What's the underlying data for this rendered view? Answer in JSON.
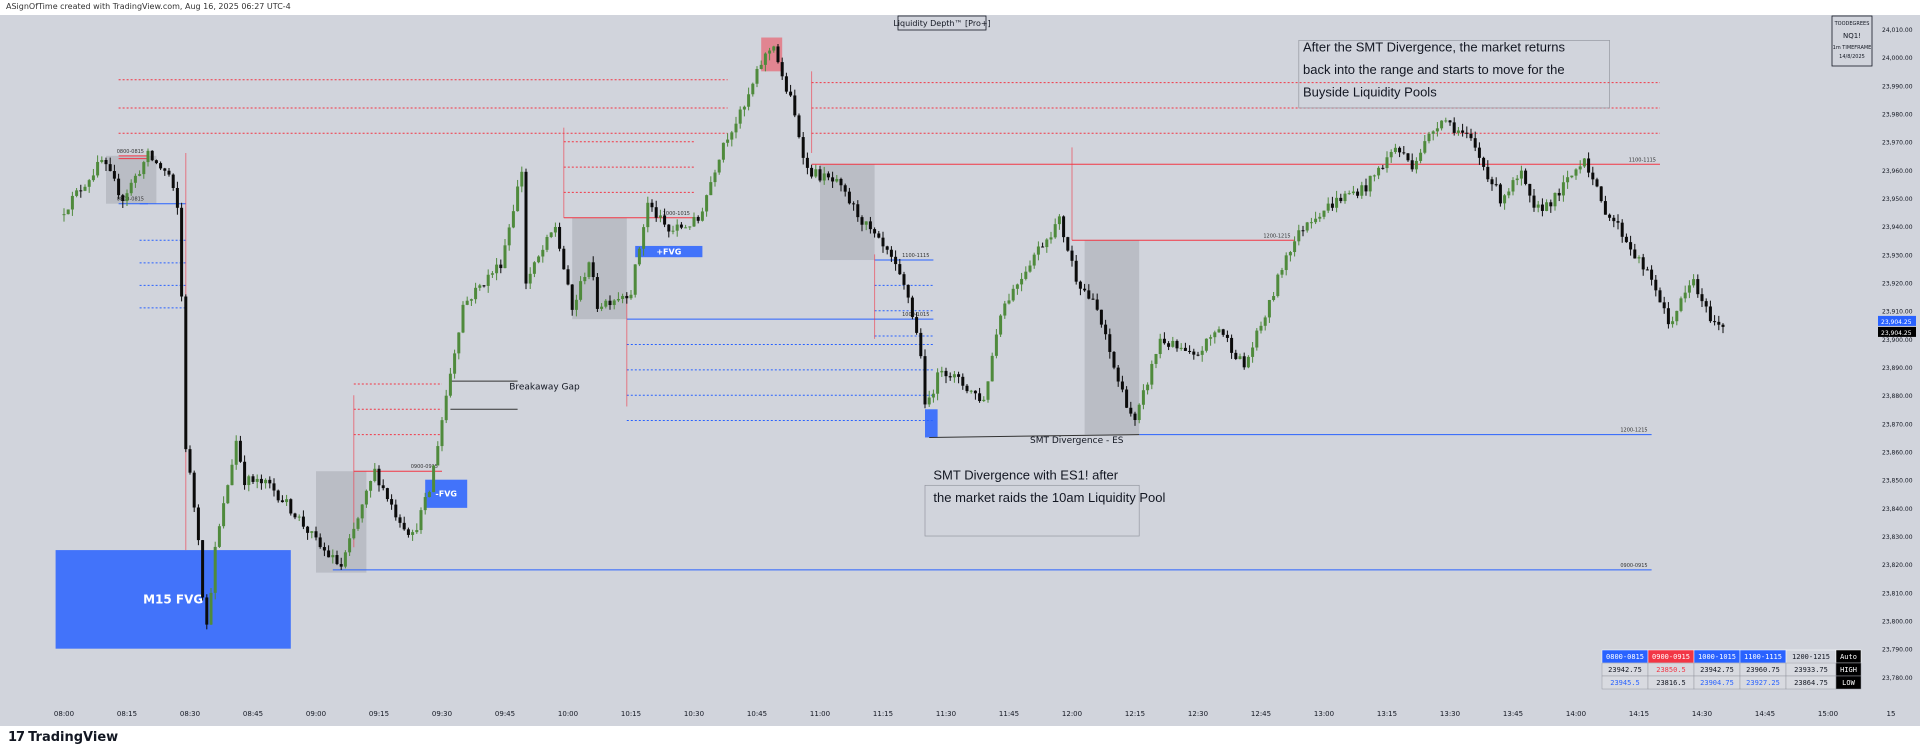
{
  "header": {
    "attribution": "ASignOfTime created with TradingView.com, Aug 16, 2025 06:27 UTC-4"
  },
  "footer": {
    "brand": "TradingView",
    "brand_icon": "tradingview-logo-icon"
  },
  "indicator": {
    "title": "Liquidity Depth™ [Pro+]"
  },
  "watermark": {
    "lines": [
      "TOODEGREES",
      "NQ1!",
      "1m TIMEFRAME",
      "14/8/2025"
    ]
  },
  "colors": {
    "background": "#d1d4dc",
    "bull": "#4f8a3c",
    "bear": "#0b0b0b",
    "blue": "#2962ff",
    "red": "#f23645",
    "zone": "#b2b5be"
  },
  "chart_data": {
    "type": "candlestick",
    "symbol": "NQ1!",
    "timeframe": "1m",
    "ylim": [
      23770,
      24015
    ],
    "y_ticks": [
      23780,
      23790,
      23800,
      23810,
      23820,
      23830,
      23840,
      23850,
      23860,
      23870,
      23880,
      23890,
      23900,
      23910,
      23920,
      23930,
      23940,
      23950,
      23960,
      23970,
      23980,
      23990,
      24000,
      24010
    ],
    "y_tick_labels": [
      "23,780.00",
      "23,790.00",
      "23,800.00",
      "23,810.00",
      "23,820.00",
      "23,830.00",
      "23,840.00",
      "23,850.00",
      "23,860.00",
      "23,870.00",
      "23,880.00",
      "23,890.00",
      "23,900.00",
      "23,910.00",
      "23,920.00",
      "23,930.00",
      "23,940.00",
      "23,950.00",
      "23,960.00",
      "23,970.00",
      "23,980.00",
      "23,990.00",
      "24,000.00",
      "24,010.00"
    ],
    "x_labels": [
      {
        "t": 0,
        "label": "08:00"
      },
      {
        "t": 15,
        "label": "08:15"
      },
      {
        "t": 30,
        "label": "08:30"
      },
      {
        "t": 45,
        "label": "08:45"
      },
      {
        "t": 60,
        "label": "09:00"
      },
      {
        "t": 75,
        "label": "09:15"
      },
      {
        "t": 90,
        "label": "09:30"
      },
      {
        "t": 105,
        "label": "09:45"
      },
      {
        "t": 120,
        "label": "10:00"
      },
      {
        "t": 135,
        "label": "10:15"
      },
      {
        "t": 150,
        "label": "10:30"
      },
      {
        "t": 165,
        "label": "10:45"
      },
      {
        "t": 180,
        "label": "11:00"
      },
      {
        "t": 195,
        "label": "11:15"
      },
      {
        "t": 210,
        "label": "11:30"
      },
      {
        "t": 225,
        "label": "11:45"
      },
      {
        "t": 240,
        "label": "12:00"
      },
      {
        "t": 255,
        "label": "12:15"
      },
      {
        "t": 270,
        "label": "12:30"
      },
      {
        "t": 285,
        "label": "12:45"
      },
      {
        "t": 300,
        "label": "13:00"
      },
      {
        "t": 315,
        "label": "13:15"
      },
      {
        "t": 330,
        "label": "13:30"
      },
      {
        "t": 345,
        "label": "13:45"
      },
      {
        "t": 360,
        "label": "14:00"
      },
      {
        "t": 375,
        "label": "14:15"
      },
      {
        "t": 390,
        "label": "14:30"
      },
      {
        "t": 405,
        "label": "14:45"
      },
      {
        "t": 420,
        "label": "15:00"
      },
      {
        "t": 435,
        "label": "15"
      }
    ],
    "waypoints": [
      [
        0,
        23944
      ],
      [
        10,
        23963
      ],
      [
        15,
        23950
      ],
      [
        21,
        23965
      ],
      [
        26,
        23958
      ],
      [
        28,
        23946
      ],
      [
        29,
        23915
      ],
      [
        30,
        23862
      ],
      [
        33,
        23830
      ],
      [
        34,
        23810
      ],
      [
        35,
        23798
      ],
      [
        37,
        23825
      ],
      [
        42,
        23864
      ],
      [
        44,
        23850
      ],
      [
        50,
        23848
      ],
      [
        56,
        23838
      ],
      [
        62,
        23826
      ],
      [
        67,
        23819
      ],
      [
        75,
        23853
      ],
      [
        80,
        23838
      ],
      [
        84,
        23830
      ],
      [
        88,
        23846
      ],
      [
        92,
        23880
      ],
      [
        96,
        23912
      ],
      [
        105,
        23927
      ],
      [
        110,
        23960
      ],
      [
        111,
        23920
      ],
      [
        118,
        23940
      ],
      [
        122,
        23910
      ],
      [
        126,
        23928
      ],
      [
        128,
        23912
      ],
      [
        136,
        23917
      ],
      [
        140,
        23948
      ],
      [
        145,
        23938
      ],
      [
        152,
        23942
      ],
      [
        158,
        23970
      ],
      [
        163,
        23982
      ],
      [
        167,
        23998
      ],
      [
        170,
        24005
      ],
      [
        172,
        23992
      ],
      [
        174,
        23985
      ],
      [
        178,
        23960
      ],
      [
        185,
        23955
      ],
      [
        192,
        23940
      ],
      [
        198,
        23928
      ],
      [
        202,
        23915
      ],
      [
        205,
        23895
      ],
      [
        206,
        23875
      ],
      [
        210,
        23890
      ],
      [
        214,
        23885
      ],
      [
        220,
        23878
      ],
      [
        224,
        23910
      ],
      [
        232,
        23930
      ],
      [
        238,
        23942
      ],
      [
        242,
        23922
      ],
      [
        247,
        23910
      ],
      [
        252,
        23885
      ],
      [
        256,
        23870
      ],
      [
        262,
        23900
      ],
      [
        270,
        23893
      ],
      [
        276,
        23904
      ],
      [
        282,
        23890
      ],
      [
        288,
        23912
      ],
      [
        292,
        23930
      ],
      [
        297,
        23942
      ],
      [
        305,
        23950
      ],
      [
        311,
        23954
      ],
      [
        318,
        23968
      ],
      [
        322,
        23962
      ],
      [
        329,
        23979
      ],
      [
        336,
        23970
      ],
      [
        343,
        23950
      ],
      [
        348,
        23958
      ],
      [
        351,
        23945
      ],
      [
        356,
        23950
      ],
      [
        360,
        23958
      ],
      [
        363,
        23965
      ],
      [
        367,
        23948
      ],
      [
        371,
        23940
      ],
      [
        375,
        23930
      ],
      [
        380,
        23918
      ],
      [
        383,
        23905
      ],
      [
        389,
        23921
      ],
      [
        391,
        23912
      ],
      [
        394,
        23906
      ],
      [
        395,
        23904.25
      ]
    ],
    "price_labels": [
      {
        "value": 23904.25,
        "text": "23,904.25",
        "style": "blue"
      },
      {
        "value": 23904.25,
        "text": "23,904.25",
        "style": "black"
      }
    ],
    "zones": [
      {
        "t0": 10,
        "t1": 22,
        "y0": 23948,
        "y1": 23965
      },
      {
        "t0": 60,
        "t1": 72,
        "y0": 23817,
        "y1": 23853
      },
      {
        "t0": 121,
        "t1": 134,
        "y0": 23907,
        "y1": 23943
      },
      {
        "t0": 180,
        "t1": 193,
        "y0": 23928,
        "y1": 23962
      },
      {
        "t0": 243,
        "t1": 256,
        "y0": 23866,
        "y1": 23935
      }
    ],
    "fvgs": [
      {
        "t0": -2,
        "t1": 54,
        "y0": 23790,
        "y1": 23825,
        "label": "M15 FVG",
        "fontsize": 12
      },
      {
        "t0": 86,
        "t1": 96,
        "y0": 23840,
        "y1": 23850,
        "label": "-FVG",
        "fontsize": 8
      },
      {
        "t0": 136,
        "t1": 152,
        "y0": 23929,
        "y1": 23933,
        "label": "+FVG",
        "fontsize": 8
      },
      {
        "t0": 205,
        "t1": 208,
        "y0": 23865,
        "y1": 23875,
        "label": "",
        "fontsize": 8
      }
    ],
    "highlights": [
      {
        "t0": 166,
        "t1": 171,
        "y0": 23995,
        "y1": 24007
      }
    ],
    "levels": [
      {
        "t0": 13,
        "t1": 20,
        "y": 23948,
        "color": "blue",
        "dash": false,
        "label": "0800-0815"
      },
      {
        "t0": 13,
        "t1": 20,
        "y": 23965,
        "color": "red",
        "dash": false,
        "label": "0800-0815"
      },
      {
        "t0": 18,
        "t1": 29,
        "y": 23948,
        "color": "blue",
        "dash": false,
        "label": ""
      },
      {
        "t0": 18,
        "t1": 29,
        "y": 23935,
        "color": "blue",
        "dash": true,
        "label": ""
      },
      {
        "t0": 18,
        "t1": 29,
        "y": 23927,
        "color": "blue",
        "dash": true,
        "label": ""
      },
      {
        "t0": 18,
        "t1": 29,
        "y": 23919,
        "color": "blue",
        "dash": true,
        "label": ""
      },
      {
        "t0": 18,
        "t1": 29,
        "y": 23911,
        "color": "blue",
        "dash": true,
        "label": ""
      },
      {
        "t0": 13,
        "t1": 20,
        "y": 23964,
        "color": "red",
        "dash": false,
        "label": ""
      },
      {
        "t0": 13,
        "t1": 158,
        "y": 23992,
        "color": "red",
        "dash": true,
        "label": ""
      },
      {
        "t0": 13,
        "t1": 158,
        "y": 23982,
        "color": "red",
        "dash": true,
        "label": ""
      },
      {
        "t0": 13,
        "t1": 158,
        "y": 23973,
        "color": "red",
        "dash": true,
        "label": ""
      },
      {
        "t0": 69,
        "t1": 90,
        "y": 23853,
        "color": "red",
        "dash": false,
        "label": "0900-0915"
      },
      {
        "t0": 69,
        "t1": 90,
        "y": 23884,
        "color": "red",
        "dash": true,
        "label": ""
      },
      {
        "t0": 69,
        "t1": 90,
        "y": 23875,
        "color": "red",
        "dash": true,
        "label": ""
      },
      {
        "t0": 69,
        "t1": 90,
        "y": 23866,
        "color": "red",
        "dash": true,
        "label": ""
      },
      {
        "t0": 64,
        "t1": 378,
        "y": 23818,
        "color": "blue",
        "dash": false,
        "label": "0900-0915"
      },
      {
        "t0": 119,
        "t1": 150,
        "y": 23943,
        "color": "red",
        "dash": false,
        "label": "1000-1015"
      },
      {
        "t0": 119,
        "t1": 150,
        "y": 23970,
        "color": "red",
        "dash": true,
        "label": ""
      },
      {
        "t0": 119,
        "t1": 150,
        "y": 23961,
        "color": "red",
        "dash": true,
        "label": ""
      },
      {
        "t0": 119,
        "t1": 150,
        "y": 23952,
        "color": "red",
        "dash": true,
        "label": ""
      },
      {
        "t0": 134,
        "t1": 207,
        "y": 23907,
        "color": "blue",
        "dash": false,
        "label": "1000-1015"
      },
      {
        "t0": 134,
        "t1": 207,
        "y": 23898,
        "color": "blue",
        "dash": true,
        "label": ""
      },
      {
        "t0": 134,
        "t1": 207,
        "y": 23889,
        "color": "blue",
        "dash": true,
        "label": ""
      },
      {
        "t0": 134,
        "t1": 207,
        "y": 23880,
        "color": "blue",
        "dash": true,
        "label": ""
      },
      {
        "t0": 134,
        "t1": 207,
        "y": 23871,
        "color": "blue",
        "dash": true,
        "label": ""
      },
      {
        "t0": 178,
        "t1": 380,
        "y": 23962,
        "color": "red",
        "dash": false,
        "label": "1100-1115"
      },
      {
        "t0": 178,
        "t1": 380,
        "y": 23991,
        "color": "red",
        "dash": true,
        "label": ""
      },
      {
        "t0": 178,
        "t1": 380,
        "y": 23982,
        "color": "red",
        "dash": true,
        "label": ""
      },
      {
        "t0": 178,
        "t1": 380,
        "y": 23973,
        "color": "red",
        "dash": true,
        "label": ""
      },
      {
        "t0": 193,
        "t1": 207,
        "y": 23928,
        "color": "blue",
        "dash": false,
        "label": "1100-1115"
      },
      {
        "t0": 193,
        "t1": 207,
        "y": 23919,
        "color": "blue",
        "dash": true,
        "label": ""
      },
      {
        "t0": 193,
        "t1": 207,
        "y": 23910,
        "color": "blue",
        "dash": true,
        "label": ""
      },
      {
        "t0": 193,
        "t1": 207,
        "y": 23901,
        "color": "blue",
        "dash": true,
        "label": ""
      },
      {
        "t0": 256,
        "t1": 378,
        "y": 23866,
        "color": "blue",
        "dash": false,
        "label": "1200-1215"
      },
      {
        "t0": 240,
        "t1": 293,
        "y": 23935,
        "color": "red",
        "dash": false,
        "label": "1200-1215"
      }
    ],
    "annotations": [
      {
        "text": "Breakaway Gap",
        "t": 106,
        "y": 23882,
        "fontsize": 9
      },
      {
        "text": "SMT Divergence - ES",
        "t": 230,
        "y": 23863,
        "fontsize": 9
      },
      {
        "text": "SMT Divergence with ES1! after",
        "t": 207,
        "y": 23850,
        "fontsize": 13
      },
      {
        "text": "the market raids the 10am Liquidity Pool",
        "t": 207,
        "y": 23842,
        "fontsize": 13
      },
      {
        "text": "After the SMT Divergence, the market returns",
        "t": 295,
        "y": 24002,
        "fontsize": 13
      },
      {
        "text": "back into the range and starts to move for the",
        "t": 295,
        "y": 23994,
        "fontsize": 13
      },
      {
        "text": "Buyside Liquidity Pools",
        "t": 295,
        "y": 23986,
        "fontsize": 13
      }
    ],
    "table": {
      "headers": [
        "0800-0815",
        "0900-0915",
        "1000-1015",
        "1100-1115",
        "1200-1215",
        "Auto"
      ],
      "rows": [
        [
          "23942.75",
          "23850.5",
          "23942.75",
          "23960.75",
          "23933.75",
          "HIGH"
        ],
        [
          "23945.5",
          "23816.5",
          "23904.75",
          "23927.25",
          "23864.75",
          "LOW"
        ]
      ]
    }
  }
}
